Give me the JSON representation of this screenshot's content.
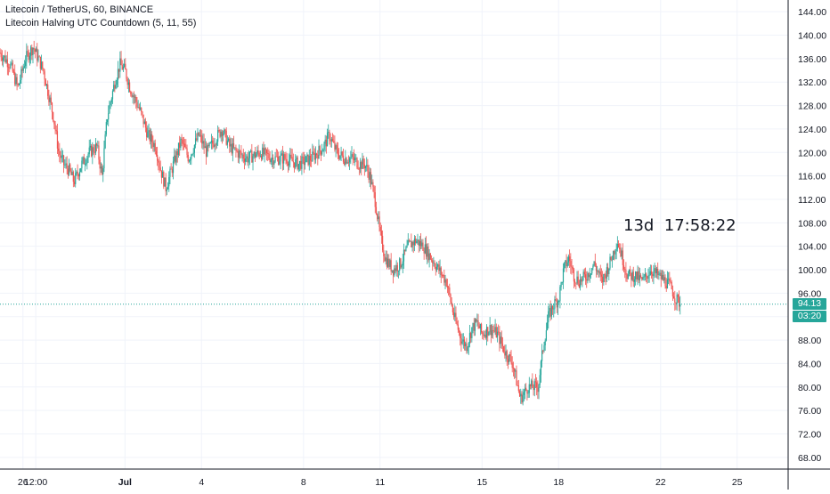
{
  "legend": {
    "line1": "Litecoin / TetherUS, 60, BINANCE",
    "line2": "Litecoin Halving UTC Countdown (5, 11, 55)"
  },
  "countdown": {
    "text": "13d  17:58:22"
  },
  "last_price": "94.13",
  "bar_timer": "03:20",
  "colors": {
    "up": "#26a69a",
    "down": "#ef5350",
    "grid": "#f0f3fa",
    "axis": "#131722",
    "badge": "#26a69a"
  },
  "chart_data": {
    "type": "candlestick",
    "title": "",
    "xlabel": "",
    "ylabel": "",
    "ylim": [
      66,
      146
    ],
    "y_ticks": [
      68,
      72,
      76,
      80,
      84,
      88,
      92,
      96,
      100,
      104,
      108,
      112,
      116,
      120,
      124,
      128,
      132,
      136,
      140,
      144
    ],
    "x_tick_labels": [
      "26",
      "12:00",
      "Jul",
      "4",
      "8",
      "11",
      "15",
      "18",
      "22",
      "25"
    ],
    "x_tick_days": [
      26,
      26.5,
      30,
      33,
      37,
      40,
      44,
      47,
      51,
      54
    ],
    "x_range_days": [
      25.1,
      56
    ],
    "grid": true,
    "series": [
      {
        "x_days": [
          25.1,
          25.5,
          25.8,
          26.1,
          26.4,
          26.8,
          27.0,
          27.2,
          27.4,
          27.6,
          27.8,
          28.0,
          28.3,
          28.6,
          28.9,
          29.1,
          29.3,
          29.6,
          29.8,
          30.0,
          30.2,
          30.4,
          30.6,
          30.9,
          31.2,
          31.4,
          31.6,
          31.9,
          32.2,
          32.5,
          32.9,
          33.2,
          33.5,
          33.8,
          34.1,
          34.4,
          34.8,
          35.3,
          35.8,
          36.3,
          36.8,
          37.3,
          37.8,
          38.0,
          38.3,
          38.6,
          38.9,
          39.2,
          39.4,
          39.6,
          39.8,
          40.0,
          40.2,
          40.5,
          40.8,
          41.1,
          41.4,
          41.7,
          42.0,
          42.3,
          42.6,
          42.9,
          43.2,
          43.4,
          43.6,
          43.8,
          44.0,
          44.3,
          44.6,
          44.9,
          45.2,
          45.5,
          45.8,
          46.0,
          46.2,
          46.4,
          46.6,
          46.8,
          47.0,
          47.2,
          47.4,
          47.6,
          47.8,
          48.1,
          48.4,
          48.7,
          49.0,
          49.3,
          49.5,
          49.7,
          50.0,
          50.3,
          50.6,
          50.9,
          51.2,
          51.4,
          51.6,
          51.8
        ],
        "close": [
          137,
          135,
          131,
          136,
          138,
          134,
          130,
          126,
          120,
          118,
          117,
          115,
          118,
          120,
          121,
          116,
          126,
          132,
          135,
          134,
          131,
          129,
          127,
          123,
          121,
          117,
          114,
          118,
          122,
          119,
          123,
          120,
          122,
          124,
          121,
          120,
          119,
          120,
          119,
          119,
          118,
          119,
          121,
          123,
          120,
          119,
          119,
          118,
          118,
          116,
          112,
          106,
          102,
          100,
          101,
          104,
          105,
          104,
          102,
          100,
          98,
          92,
          88,
          87,
          90,
          91,
          89,
          90,
          89,
          86,
          84,
          78,
          80,
          80,
          80,
          87,
          92,
          94,
          95,
          100,
          102,
          99,
          98,
          99,
          101,
          98,
          101,
          105,
          102,
          99,
          99,
          98,
          100,
          99,
          98,
          97,
          95,
          94.13
        ]
      }
    ],
    "markers": [
      {
        "label": "13d  17:58:22",
        "x_day": 49.4,
        "y": 107
      }
    ]
  }
}
